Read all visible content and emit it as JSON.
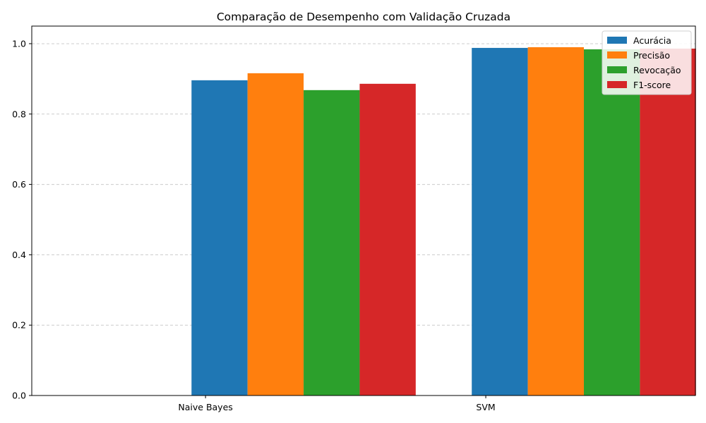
{
  "chart_data": {
    "type": "bar",
    "title": "Comparação de Desempenho com Validação Cruzada",
    "xlabel": "",
    "ylabel": "",
    "categories": [
      "Naive Bayes",
      "SVM"
    ],
    "series": [
      {
        "name": "Acurácia",
        "color": "#1f77b4",
        "values": [
          0.896,
          0.988
        ]
      },
      {
        "name": "Precisão",
        "color": "#ff7f0e",
        "values": [
          0.916,
          0.99
        ]
      },
      {
        "name": "Revocação",
        "color": "#2ca02c",
        "values": [
          0.868,
          0.984
        ]
      },
      {
        "name": "F1-score",
        "color": "#d62728",
        "values": [
          0.886,
          0.986
        ]
      }
    ],
    "ylim": [
      0,
      1.05
    ],
    "yticks": [
      "0.0",
      "0.2",
      "0.4",
      "0.6",
      "0.8",
      "1.0"
    ],
    "grid": "y-dashed",
    "legend": "top-right"
  }
}
